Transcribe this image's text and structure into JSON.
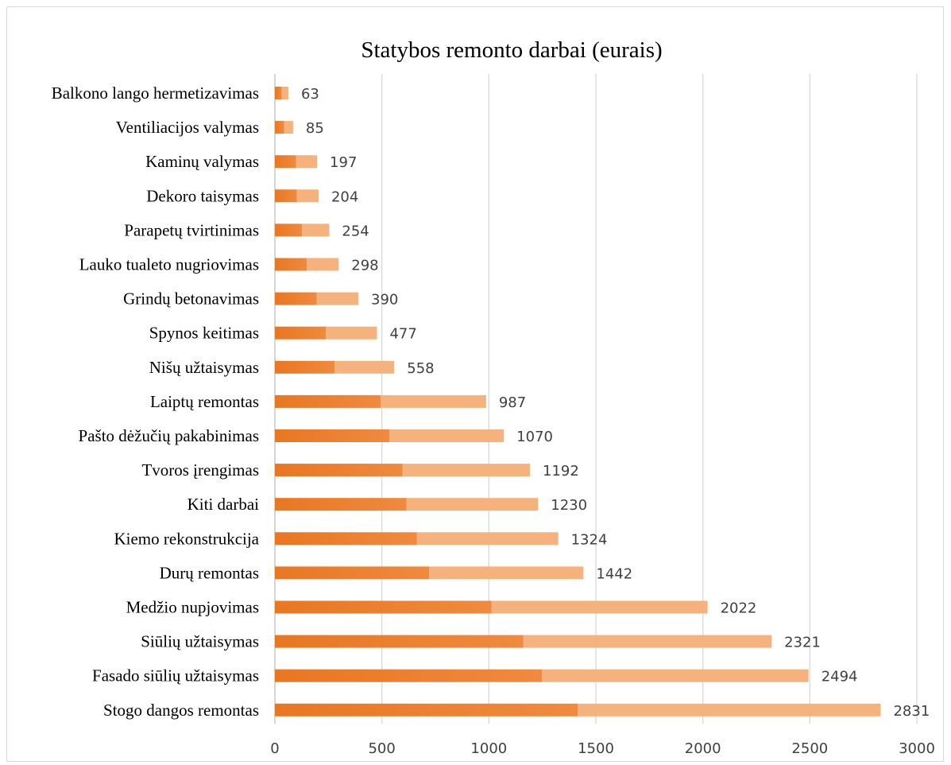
{
  "chart_data": {
    "type": "bar",
    "orientation": "horizontal",
    "title": "Statybos remonto darbai (eurais)",
    "xlabel": "",
    "ylabel": "",
    "xlim": [
      0,
      3000
    ],
    "x_ticks": [
      0,
      500,
      1000,
      1500,
      2000,
      2500,
      3000
    ],
    "grid": true,
    "legend": "none",
    "colors": {
      "bar_dark": "#e87722",
      "bar_light": "#f6b27c",
      "gradient_fraction": 0.5
    },
    "categories": [
      "Balkono lango hermetizavimas",
      "Ventiliacijos valymas",
      "Kaminų valymas",
      "Dekoro taisymas",
      "Parapetų tvirtinimas",
      "Lauko tualeto nugriovimas",
      "Grindų betonavimas",
      "Spynos keitimas",
      "Nišų užtaisymas",
      "Laiptų remontas",
      "Pašto dėžučių pakabinimas",
      "Tvoros įrengimas",
      "Kiti darbai",
      "Kiemo rekonstrukcija",
      "Durų remontas",
      "Medžio nupjovimas",
      "Siūlių užtaisymas",
      "Fasado siūlių užtaisymas",
      "Stogo dangos remontas"
    ],
    "values": [
      63,
      85,
      197,
      204,
      254,
      298,
      390,
      477,
      558,
      987,
      1070,
      1192,
      1230,
      1324,
      1442,
      2022,
      2321,
      2494,
      2831
    ],
    "value_labels": [
      "63",
      "85",
      "197",
      "204",
      "254",
      "298",
      "390",
      "477",
      "558",
      "987",
      "1070",
      "1192",
      "1230",
      "1324",
      "1442",
      "2022",
      "2321",
      "2494",
      "2831"
    ],
    "x_tick_labels": [
      "0",
      "500",
      "1000",
      "1500",
      "2000",
      "2500",
      "3000"
    ]
  }
}
